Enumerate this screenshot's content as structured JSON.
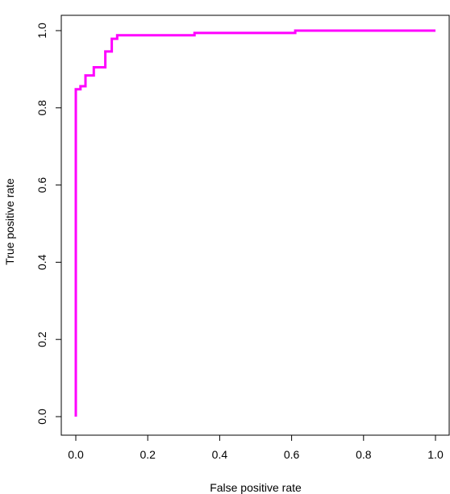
{
  "chart_data": {
    "type": "line",
    "title": "",
    "xlabel": "False positive rate",
    "ylabel": "True positive rate",
    "xlim": [
      0,
      1
    ],
    "ylim": [
      0,
      1
    ],
    "xticks": [
      "0.0",
      "0.2",
      "0.4",
      "0.6",
      "0.8",
      "1.0"
    ],
    "yticks": [
      "0.0",
      "0.2",
      "0.4",
      "0.6",
      "0.8",
      "1.0"
    ],
    "grid": false,
    "legend": "none",
    "series": [
      {
        "color": "#ff00ff",
        "x": [
          0.0,
          0.0,
          0.013,
          0.013,
          0.027,
          0.027,
          0.05,
          0.05,
          0.082,
          0.082,
          0.1,
          0.1,
          0.115,
          0.115,
          0.33,
          0.33,
          0.61,
          0.61,
          1.0
        ],
        "y": [
          0.0,
          0.848,
          0.848,
          0.856,
          0.856,
          0.884,
          0.884,
          0.905,
          0.905,
          0.946,
          0.946,
          0.979,
          0.979,
          0.988,
          0.988,
          0.994,
          0.994,
          1.0,
          1.0
        ]
      }
    ]
  }
}
